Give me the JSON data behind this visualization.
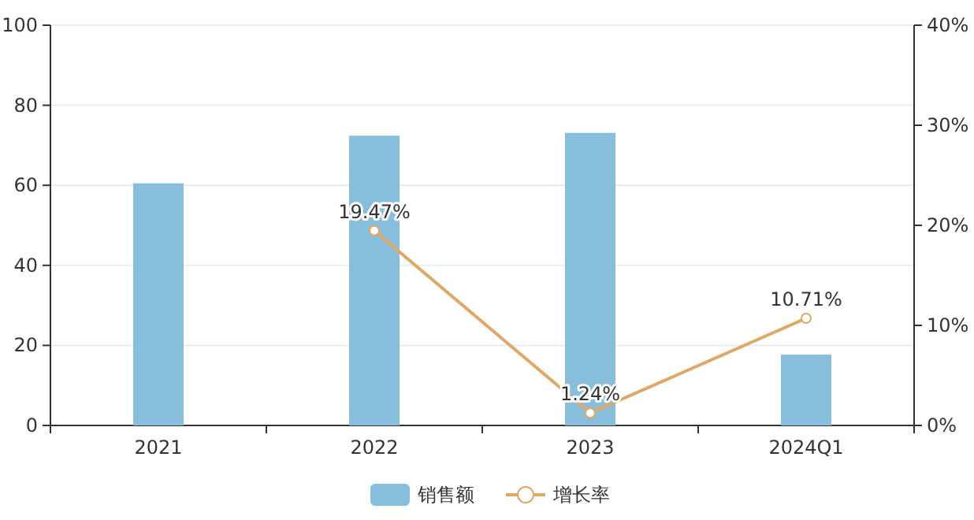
{
  "chart_data": {
    "type": "bar",
    "categories": [
      "2021",
      "2022",
      "2023",
      "2024Q1"
    ],
    "series": [
      {
        "name": "销售额",
        "color": "#86bedb",
        "values": [
          60.5,
          72.4,
          73.1,
          17.7
        ]
      },
      {
        "name": "增长率",
        "type": "line",
        "axis": "y2",
        "color": "#e0a866",
        "marker": "circle",
        "data_labels": true,
        "values": [
          null,
          19.47,
          1.24,
          10.71
        ],
        "value_labels": [
          null,
          "19.47%",
          "1.24%",
          "10.71%"
        ]
      }
    ],
    "ylim": [
      0,
      100
    ],
    "yticks": [
      0,
      20,
      40,
      60,
      80,
      100
    ],
    "y2lim": [
      0,
      40
    ],
    "y2ticks": [
      {
        "value": 0,
        "label": "0%"
      },
      {
        "value": 10,
        "label": "10%"
      },
      {
        "value": 20,
        "label": "20%"
      },
      {
        "value": 30,
        "label": "30%"
      },
      {
        "value": 40,
        "label": "40%"
      }
    ],
    "grid": "y",
    "legend": "bottom"
  }
}
